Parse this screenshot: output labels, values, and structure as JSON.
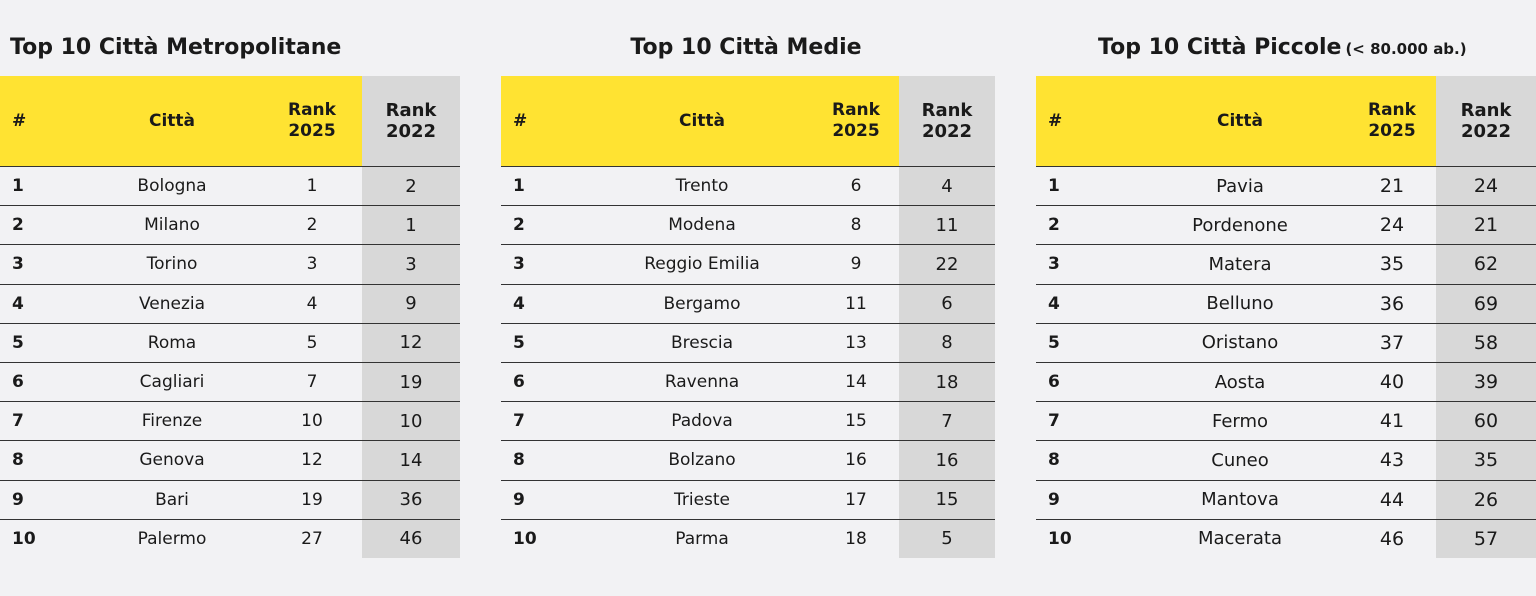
{
  "headers": {
    "hash": "#",
    "city": "Città",
    "rank2025_l1": "Rank",
    "rank2025_l2": "2025",
    "rank2022_l1": "Rank",
    "rank2022_l2": "2022"
  },
  "tables": [
    {
      "title": "Top 10 Città Metropolitane",
      "subtitle": "",
      "rows": [
        {
          "n": "1",
          "city": "Bologna",
          "r2025": "1",
          "r2022": "2"
        },
        {
          "n": "2",
          "city": "Milano",
          "r2025": "2",
          "r2022": "1"
        },
        {
          "n": "3",
          "city": "Torino",
          "r2025": "3",
          "r2022": "3"
        },
        {
          "n": "4",
          "city": "Venezia",
          "r2025": "4",
          "r2022": "9"
        },
        {
          "n": "5",
          "city": "Roma",
          "r2025": "5",
          "r2022": "12"
        },
        {
          "n": "6",
          "city": "Cagliari",
          "r2025": "7",
          "r2022": "19"
        },
        {
          "n": "7",
          "city": "Firenze",
          "r2025": "10",
          "r2022": "10"
        },
        {
          "n": "8",
          "city": "Genova",
          "r2025": "12",
          "r2022": "14"
        },
        {
          "n": "9",
          "city": "Bari",
          "r2025": "19",
          "r2022": "36"
        },
        {
          "n": "10",
          "city": "Palermo",
          "r2025": "27",
          "r2022": "46"
        }
      ]
    },
    {
      "title": "Top 10 Città Medie",
      "subtitle": "",
      "rows": [
        {
          "n": "1",
          "city": "Trento",
          "r2025": "6",
          "r2022": "4"
        },
        {
          "n": "2",
          "city": "Modena",
          "r2025": "8",
          "r2022": "11"
        },
        {
          "n": "3",
          "city": "Reggio Emilia",
          "r2025": "9",
          "r2022": "22"
        },
        {
          "n": "4",
          "city": "Bergamo",
          "r2025": "11",
          "r2022": "6"
        },
        {
          "n": "5",
          "city": "Brescia",
          "r2025": "13",
          "r2022": "8"
        },
        {
          "n": "6",
          "city": "Ravenna",
          "r2025": "14",
          "r2022": "18"
        },
        {
          "n": "7",
          "city": "Padova",
          "r2025": "15",
          "r2022": "7"
        },
        {
          "n": "8",
          "city": "Bolzano",
          "r2025": "16",
          "r2022": "16"
        },
        {
          "n": "9",
          "city": "Trieste",
          "r2025": "17",
          "r2022": "15"
        },
        {
          "n": "10",
          "city": "Parma",
          "r2025": "18",
          "r2022": "5"
        }
      ]
    },
    {
      "title": "Top 10 Città Piccole",
      "subtitle": "(< 80.000 ab.)",
      "rows": [
        {
          "n": "1",
          "city": "Pavia",
          "r2025": "21",
          "r2022": "24"
        },
        {
          "n": "2",
          "city": "Pordenone",
          "r2025": "24",
          "r2022": "21"
        },
        {
          "n": "3",
          "city": "Matera",
          "r2025": "35",
          "r2022": "62"
        },
        {
          "n": "4",
          "city": "Belluno",
          "r2025": "36",
          "r2022": "69"
        },
        {
          "n": "5",
          "city": "Oristano",
          "r2025": "37",
          "r2022": "58"
        },
        {
          "n": "6",
          "city": "Aosta",
          "r2025": "40",
          "r2022": "39"
        },
        {
          "n": "7",
          "city": "Fermo",
          "r2025": "41",
          "r2022": "60"
        },
        {
          "n": "8",
          "city": "Cuneo",
          "r2025": "43",
          "r2022": "35"
        },
        {
          "n": "9",
          "city": "Mantova",
          "r2025": "44",
          "r2022": "26"
        },
        {
          "n": "10",
          "city": "Macerata",
          "r2025": "46",
          "r2022": "57"
        }
      ]
    }
  ],
  "colors": {
    "header_yellow": "#ffe332",
    "rank2022_gray": "#d8d8d8",
    "background": "#f2f2f4"
  }
}
